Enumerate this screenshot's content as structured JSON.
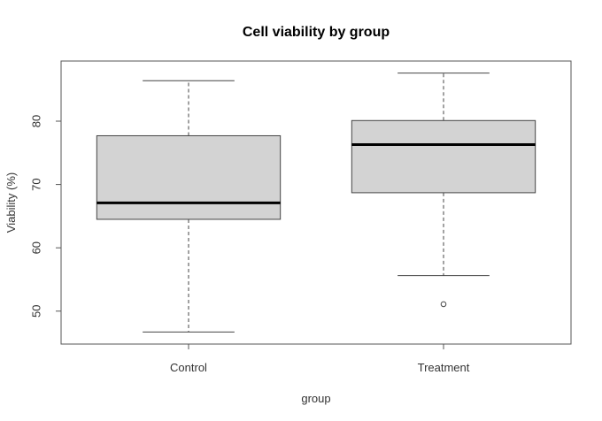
{
  "chart_data": {
    "type": "box",
    "title": "Cell viability by group",
    "xlabel": "group",
    "ylabel": "Viability (%)",
    "ylim": [
      44.8,
      89.5
    ],
    "yticks": [
      50,
      60,
      70,
      80
    ],
    "ytick_labels": [
      "50",
      "60",
      "70",
      "80"
    ],
    "grid": false,
    "box_fill": "#d3d3d3",
    "line_color": "#000000",
    "categories": [
      "Control",
      "Treatment"
    ],
    "groups": [
      {
        "name": "Control",
        "whisker_low": 46.7,
        "q1": 64.5,
        "median": 67.1,
        "q3": 77.7,
        "whisker_high": 86.4,
        "outliers": []
      },
      {
        "name": "Treatment",
        "whisker_low": 55.6,
        "q1": 68.7,
        "median": 76.3,
        "q3": 80.1,
        "whisker_high": 87.6,
        "outliers": [
          51.1
        ]
      }
    ]
  }
}
